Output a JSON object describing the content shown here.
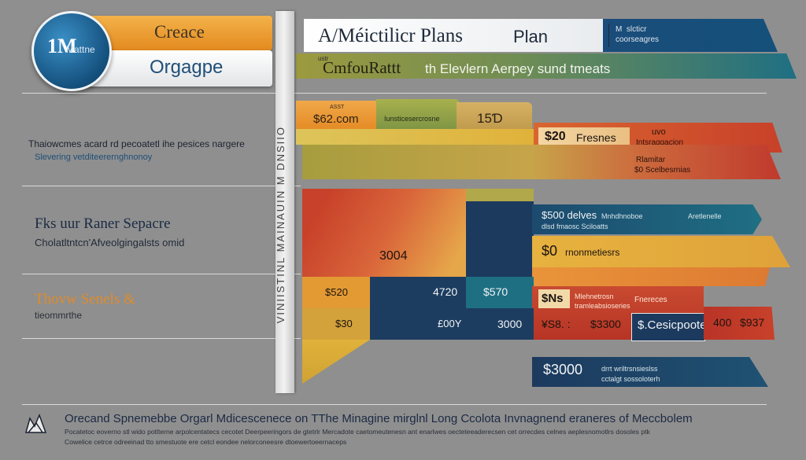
{
  "logo": {
    "circle_text": "1M",
    "circle_subtext": "Mattne",
    "tab_top": "Creace",
    "tab_bottom": "Orgagpe"
  },
  "header": {
    "banner_title": "A/Méictilicr Plans",
    "banner_plan": "Plan",
    "banner_note_1": "M  slcticr",
    "banner_note_2": "coorseagres",
    "sub_small": "ustr",
    "sub_title": "CmfouRattt",
    "sub_desc": "th Elevlern Aerpey sund tmeats"
  },
  "left_text": {
    "line_1": "Thaiowcmes acard rd pecoatetl ihe pesices nargere",
    "line_2": "Slevering vetditeerernghnonoy",
    "heading_2": "Fks uur Raner Sepacre",
    "line_3": "Cholatltntcn'Afveolgingalsts omid",
    "heading_3": "Thovw Senels &",
    "line_4": "tieommrthe"
  },
  "spine": {
    "vertical_text": "VINIISTINL MAINAUIN  M  DNSIIO"
  },
  "rows": {
    "r1_small": "ASST",
    "r1_price": "$62.com",
    "r1_green": "Iunsticesercrosne",
    "r1_right": "15Ɗ",
    "r1_red_price": "$20",
    "r1_red_label": "Fresnes",
    "r1_red_note_1": "uvo",
    "r1_red_note_2": "Intsraggacion",
    "r2_note_1": "Rlamitar",
    "r2_note_2": "$0 Scelbesrnias",
    "b_center": "3004",
    "teal_title": "$500 delves",
    "teal_sub": "dlsd fmaosc Sciloatts",
    "teal_small": "Mnhdhnoboe",
    "teal_right": "Aretlenelle",
    "yellow_label": "$0",
    "yellow_text": "rnonmetiesrs",
    "c_1": "$520",
    "c_2": "4720",
    "c_3": "$570",
    "c_4": "$30",
    "c_5": "£00Y",
    "c_6": "3000",
    "red3_price": "$Ns",
    "red3_note_1": "Mlehnetrosn",
    "red3_note_2": "tramleabsioseries",
    "red3_right": "Fnereces",
    "red3_n1": "¥S8. :",
    "red3_n2": "$3300",
    "red3_n3": "400",
    "red3_n4": "$937",
    "box_label": "$.Cesicpoote",
    "bottom_price": "$3000",
    "bottom_note_1": "drrt wriltrsnsieslss",
    "bottom_note_2": "cctalgt sossoloterh"
  },
  "footer": {
    "title": "Orecand Spnemebbe Orgarl Mdicescenece on TThe Minagine mirglnl Long Ccolota Invnagnend eraneres of Meccbolem",
    "line_1": "Pocatetoc eoverno stl wido potlterne arpolcentatecs cecotet Deerpeeringors de gtetrlr Mercadote caetomeutenesn ant enarlwes oecteteeaderecsen cet orrecdes celnes aeplesnomotlrs dosoles ptk",
    "line_2": "Cowelice cetrce odreeinad tto smestuote ere cetcl eondee nelorconeesre dtoewertoeernaceps"
  },
  "colors": {
    "background": "#8f8f8f",
    "navy": "#1c3a5e",
    "teal": "#1f6f83",
    "orange": "#e6982e",
    "olive": "#9c9a3e",
    "red": "#c8412a",
    "yellow": "#e0b23a"
  }
}
